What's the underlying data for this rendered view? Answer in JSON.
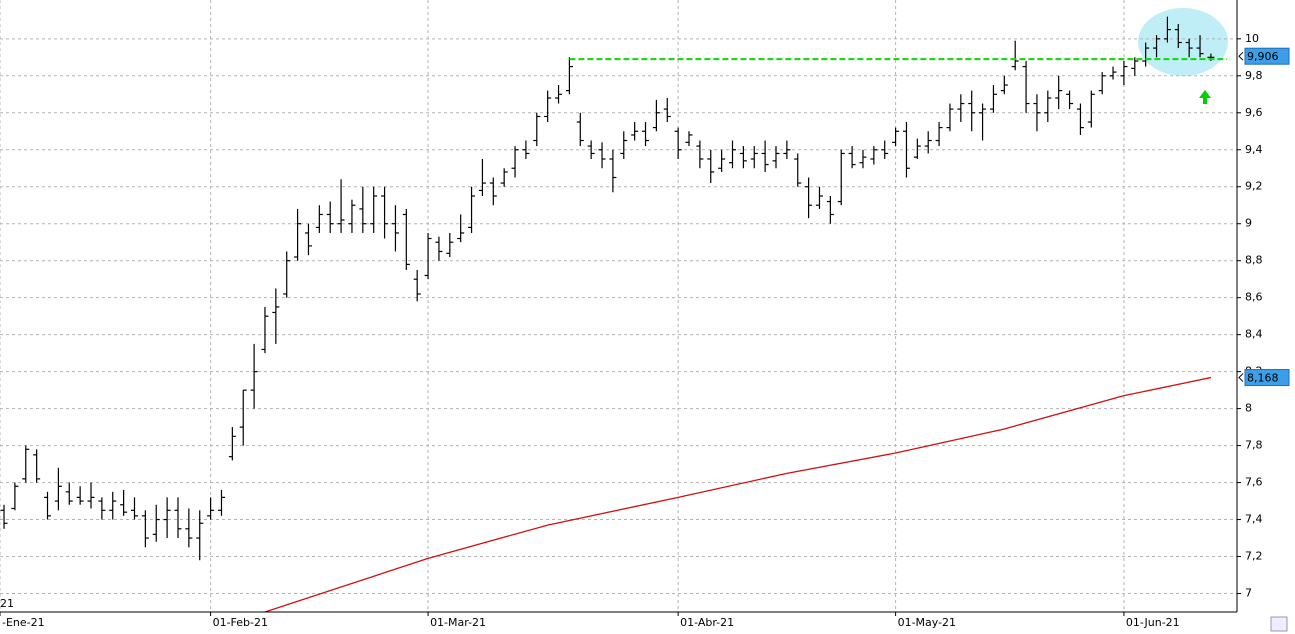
{
  "chart_data": {
    "type": "ohlc",
    "xlim": [
      -0.37,
      113.4
    ],
    "ylim": [
      6.9,
      10.21
    ],
    "xticks": [
      {
        "value": -0.37,
        "label": "-Ene-21"
      },
      {
        "value": 19,
        "label": "01-Feb-21"
      },
      {
        "value": 39,
        "label": "01-Mar-21"
      },
      {
        "value": 62,
        "label": "01-Abr-21"
      },
      {
        "value": 82,
        "label": "01-May-21"
      },
      {
        "value": 103,
        "label": "01-Jun-21"
      }
    ],
    "yticks": [
      7,
      {
        "value": 7.2,
        "label": "7,2"
      },
      {
        "value": 7.4,
        "label": "7,4"
      },
      {
        "value": 7.6,
        "label": "7,6"
      },
      {
        "value": 7.8,
        "label": "7,8"
      },
      8,
      {
        "value": 8.2,
        "label": "8,2"
      },
      {
        "value": 8.4,
        "label": "8,4"
      },
      {
        "value": 8.6,
        "label": "8,6"
      },
      {
        "value": 8.8,
        "label": "8,8"
      },
      9,
      {
        "value": 9.2,
        "label": "9,2"
      },
      {
        "value": 9.4,
        "label": "9,4"
      },
      {
        "value": 9.6,
        "label": "9,6"
      },
      {
        "value": 9.8,
        "label": "9,8"
      },
      10
    ],
    "year_label": "21",
    "grid": true,
    "color": "#000000",
    "low": [
      7.35,
      7.45,
      7.6,
      7.6,
      7.4,
      7.45,
      7.48,
      7.48,
      7.46,
      7.4,
      7.4,
      7.42,
      7.4,
      7.25,
      7.28,
      7.3,
      7.3,
      7.25,
      7.18,
      7.4,
      7.42,
      7.72,
      7.8,
      8.0,
      8.3,
      8.35,
      8.6,
      8.8,
      8.83,
      8.95,
      8.95,
      8.95,
      8.95,
      8.95,
      8.95,
      8.92,
      8.85,
      8.75,
      8.58,
      8.7,
      8.8,
      8.82,
      8.9,
      8.95,
      9.15,
      9.1,
      9.2,
      9.25,
      9.35,
      9.42,
      9.55,
      9.65,
      9.7,
      9.42,
      9.35,
      9.3,
      9.17,
      9.35,
      9.45,
      9.42,
      9.5,
      9.55,
      9.35,
      9.42,
      9.3,
      9.22,
      9.28,
      9.3,
      9.3,
      9.3,
      9.28,
      9.3,
      9.35,
      9.2,
      9.03,
      9.08,
      9.0,
      9.1,
      9.3,
      9.3,
      9.32,
      9.35,
      9.42,
      9.25,
      9.35,
      9.38,
      9.42,
      9.5,
      9.55,
      9.5,
      9.45,
      9.6,
      9.7,
      9.83,
      9.6,
      9.5,
      9.55,
      9.62,
      9.62,
      9.48,
      9.52,
      9.7,
      9.78,
      9.75,
      9.8,
      9.85,
      9.9,
      9.98,
      9.95,
      9.9,
      9.9,
      9.88
    ],
    "high": [
      7.48,
      7.6,
      7.8,
      7.78,
      7.55,
      7.68,
      7.6,
      7.58,
      7.6,
      7.52,
      7.55,
      7.56,
      7.52,
      7.45,
      7.48,
      7.52,
      7.52,
      7.46,
      7.45,
      7.52,
      7.56,
      7.9,
      8.1,
      8.35,
      8.55,
      8.65,
      8.85,
      9.08,
      9.0,
      9.1,
      9.12,
      9.24,
      9.13,
      9.2,
      9.2,
      9.2,
      9.1,
      9.08,
      8.75,
      8.95,
      8.93,
      8.95,
      9.05,
      9.2,
      9.35,
      9.25,
      9.3,
      9.42,
      9.45,
      9.6,
      9.72,
      9.75,
      9.9,
      9.6,
      9.45,
      9.44,
      9.4,
      9.5,
      9.55,
      9.55,
      9.67,
      9.68,
      9.52,
      9.5,
      9.45,
      9.4,
      9.4,
      9.45,
      9.42,
      9.42,
      9.45,
      9.42,
      9.45,
      9.38,
      9.25,
      9.2,
      9.15,
      9.4,
      9.42,
      9.4,
      9.42,
      9.45,
      9.52,
      9.55,
      9.46,
      9.5,
      9.55,
      9.65,
      9.7,
      9.72,
      9.65,
      9.75,
      9.8,
      9.99,
      9.88,
      9.7,
      9.72,
      9.8,
      9.72,
      9.65,
      9.72,
      9.82,
      9.85,
      9.88,
      9.9,
      9.98,
      10.02,
      10.12,
      10.08,
      10.0,
      10.02,
      9.92
    ],
    "open": [
      7.45,
      7.46,
      7.62,
      7.75,
      7.52,
      7.5,
      7.55,
      7.52,
      7.5,
      7.5,
      7.45,
      7.48,
      7.45,
      7.42,
      7.32,
      7.4,
      7.45,
      7.35,
      7.3,
      7.42,
      7.45,
      7.74,
      7.9,
      8.1,
      8.32,
      8.52,
      8.62,
      8.82,
      8.95,
      8.98,
      9.05,
      9.0,
      9.0,
      9.08,
      9.0,
      9.15,
      9.0,
      9.05,
      8.7,
      8.72,
      8.9,
      8.84,
      8.92,
      8.98,
      9.18,
      9.22,
      9.22,
      9.3,
      9.4,
      9.45,
      9.58,
      9.68,
      9.72,
      9.55,
      9.42,
      9.4,
      9.35,
      9.38,
      9.48,
      9.5,
      9.52,
      9.62,
      9.5,
      9.44,
      9.42,
      9.35,
      9.3,
      9.33,
      9.38,
      9.35,
      9.38,
      9.34,
      9.38,
      9.35,
      9.2,
      9.1,
      9.12,
      9.12,
      9.38,
      9.33,
      9.35,
      9.4,
      9.44,
      9.5,
      9.36,
      9.42,
      9.45,
      9.52,
      9.62,
      9.65,
      9.6,
      9.62,
      9.72,
      9.85,
      9.85,
      9.65,
      9.6,
      9.68,
      9.7,
      9.62,
      9.55,
      9.72,
      9.8,
      9.8,
      9.84,
      9.88,
      9.95,
      10.0,
      10.05,
      9.98,
      9.95,
      9.9
    ],
    "close": [
      7.38,
      7.58,
      7.78,
      7.62,
      7.42,
      7.58,
      7.5,
      7.5,
      7.52,
      7.45,
      7.5,
      7.44,
      7.42,
      7.3,
      7.4,
      7.45,
      7.35,
      7.3,
      7.38,
      7.45,
      7.52,
      7.85,
      8.1,
      8.2,
      8.5,
      8.55,
      8.8,
      9.0,
      8.88,
      9.05,
      9.0,
      9.02,
      9.1,
      9.0,
      9.15,
      9.0,
      8.95,
      8.78,
      8.62,
      8.92,
      8.85,
      8.9,
      8.95,
      9.15,
      9.22,
      9.15,
      9.28,
      9.4,
      9.38,
      9.58,
      9.68,
      9.7,
      9.85,
      9.45,
      9.38,
      9.35,
      9.25,
      9.45,
      9.5,
      9.45,
      9.6,
      9.58,
      9.4,
      9.48,
      9.35,
      9.28,
      9.35,
      9.4,
      9.34,
      9.38,
      9.32,
      9.38,
      9.4,
      9.22,
      9.1,
      9.15,
      9.05,
      9.38,
      9.32,
      9.36,
      9.4,
      9.38,
      9.5,
      9.3,
      9.42,
      9.45,
      9.52,
      9.62,
      9.65,
      9.6,
      9.62,
      9.7,
      9.75,
      9.88,
      9.65,
      9.6,
      9.68,
      9.72,
      9.65,
      9.52,
      9.7,
      9.8,
      9.82,
      9.85,
      9.88,
      9.95,
      10.0,
      10.05,
      9.98,
      9.95,
      9.92,
      9.9
    ],
    "moving_average": {
      "color": "#d01010",
      "x": [
        24,
        39,
        50,
        62,
        72,
        82,
        92,
        103,
        111
      ],
      "values": [
        6.9,
        7.19,
        7.37,
        7.52,
        7.65,
        7.76,
        7.89,
        8.07,
        8.168
      ]
    },
    "resistance": {
      "color": "#00e000",
      "value": 9.89,
      "xlim": [
        52,
        112.5
      ]
    },
    "price_tags": [
      {
        "value": 9.906,
        "label": "9,906"
      },
      {
        "value": 8.168,
        "label": "8,168"
      }
    ]
  }
}
